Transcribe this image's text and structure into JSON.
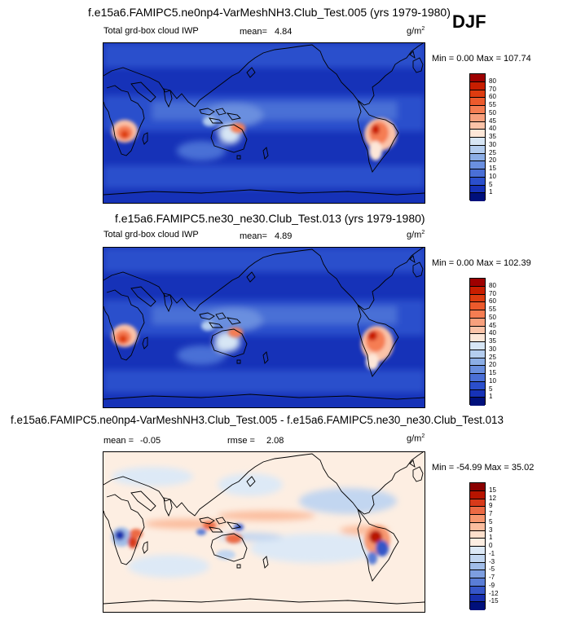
{
  "season": "DJF",
  "panels": [
    {
      "title": "f.e15a6.FAMIPC5.ne0np4-VarMeshNH3.Club_Test.005 (yrs 1979-1980)",
      "variable": "Total grd-box cloud IWP",
      "mean_label": "mean=",
      "mean_value": "4.84",
      "units": "g/m",
      "units_exp": "2",
      "minmax": "Min =   0.00 Max = 107.74",
      "colorbar": {
        "levels": [
          "80",
          "70",
          "60",
          "55",
          "50",
          "45",
          "40",
          "35",
          "30",
          "25",
          "20",
          "15",
          "10",
          "5",
          "1"
        ],
        "colors": [
          "#9e0000",
          "#c81e00",
          "#dd3c10",
          "#ec5a2c",
          "#f57d52",
          "#f8a07d",
          "#fbc3a8",
          "#fde7d8",
          "#d7e6f5",
          "#b4cdef",
          "#8caee6",
          "#6a8fdf",
          "#4a6fd6",
          "#2b4fcc",
          "#1632b8",
          "#00107c"
        ]
      }
    },
    {
      "title": "f.e15a6.FAMIPC5.ne30_ne30.Club_Test.013 (yrs 1979-1980)",
      "variable": "Total grd-box cloud IWP",
      "mean_label": "mean=",
      "mean_value": "4.89",
      "units": "g/m",
      "units_exp": "2",
      "minmax": "Min =   0.00 Max = 102.39",
      "colorbar": {
        "levels": [
          "80",
          "70",
          "60",
          "55",
          "50",
          "45",
          "40",
          "35",
          "30",
          "25",
          "20",
          "15",
          "10",
          "5",
          "1"
        ],
        "colors": [
          "#9e0000",
          "#c81e00",
          "#dd3c10",
          "#ec5a2c",
          "#f57d52",
          "#f8a07d",
          "#fbc3a8",
          "#fde7d8",
          "#d7e6f5",
          "#b4cdef",
          "#8caee6",
          "#6a8fdf",
          "#4a6fd6",
          "#2b4fcc",
          "#1632b8",
          "#00107c"
        ]
      }
    },
    {
      "title": "f.e15a6.FAMIPC5.ne0np4-VarMeshNH3.Club_Test.005 - f.e15a6.FAMIPC5.ne30_ne30.Club_Test.013",
      "mean_label": "mean =",
      "mean_value": "-0.05",
      "rmse_label": "rmse =",
      "rmse_value": "2.08",
      "units": "g/m",
      "units_exp": "2",
      "minmax": "Min = -54.99 Max =  35.02",
      "colorbar": {
        "levels": [
          "15",
          "12",
          "9",
          "7",
          "5",
          "3",
          "1",
          "0",
          "-1",
          "-3",
          "-5",
          "-7",
          "-9",
          "-12",
          "-15"
        ],
        "colors": [
          "#8a0000",
          "#b81400",
          "#d83a1a",
          "#ec6a44",
          "#f7976f",
          "#fbbd9e",
          "#fde0cc",
          "#fdeee2",
          "#dde9f6",
          "#c2d6f0",
          "#a1bde8",
          "#7d9ee0",
          "#5a7dd6",
          "#3656c8",
          "#1830ae",
          "#00107c"
        ]
      }
    }
  ]
}
